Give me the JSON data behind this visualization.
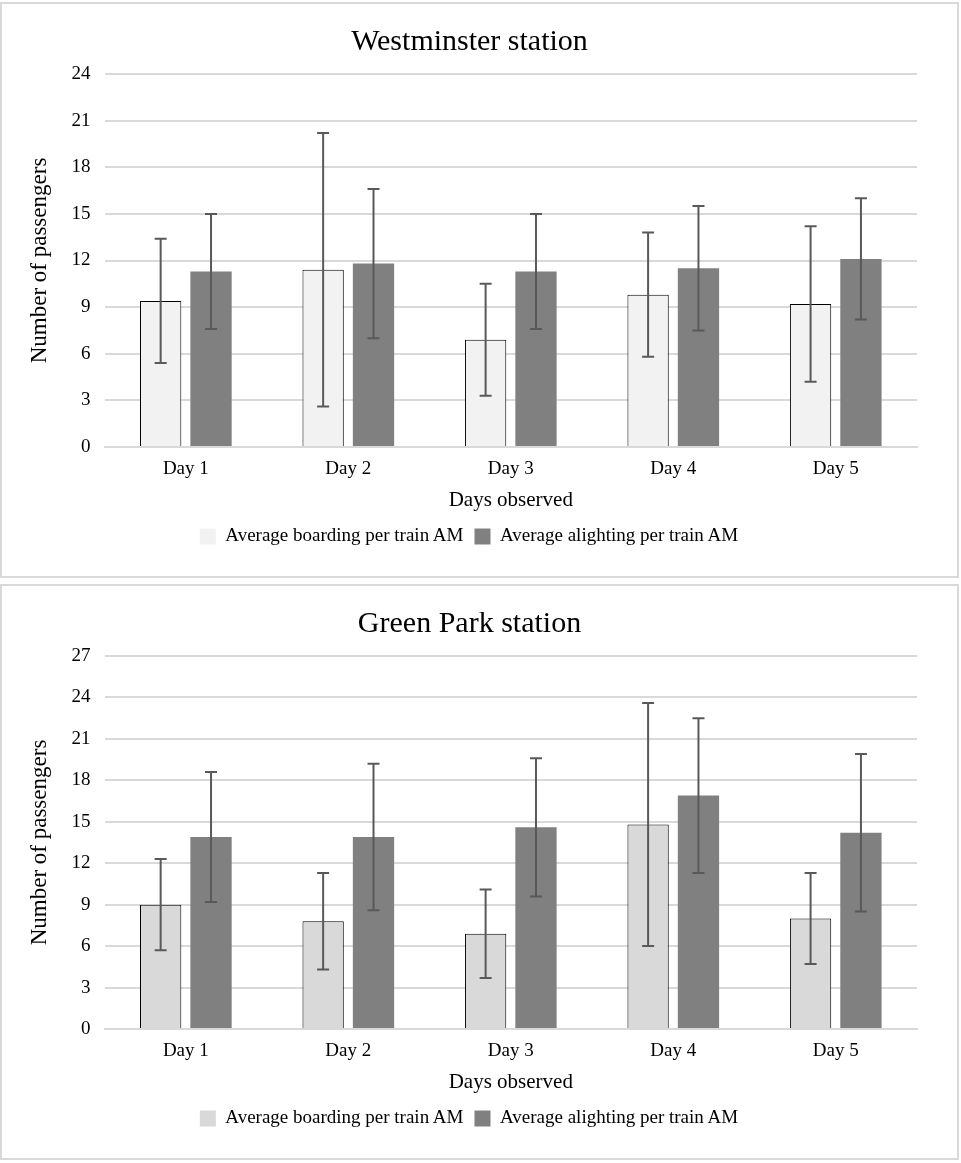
{
  "chart_data": [
    {
      "type": "bar",
      "title": "Westminster station",
      "xlabel": "Days observed",
      "ylabel": "Number of passengers",
      "categories": [
        "Day 1",
        "Day 2",
        "Day 3",
        "Day 4",
        "Day 5"
      ],
      "series": [
        {
          "name": "Average boarding per train AM",
          "color": "#f2f2f2",
          "values": [
            9.4,
            11.4,
            6.9,
            9.8,
            9.2
          ],
          "errors": [
            4.0,
            8.8,
            3.6,
            4.0,
            5.0
          ]
        },
        {
          "name": "Average alighting per train AM",
          "color": "#808080",
          "values": [
            11.3,
            11.8,
            11.3,
            11.5,
            12.1
          ],
          "errors": [
            3.7,
            4.8,
            3.7,
            4.0,
            3.9
          ]
        }
      ],
      "ylim": [
        0,
        24
      ],
      "yticks": [
        0,
        3,
        6,
        9,
        12,
        15,
        18,
        21,
        24
      ],
      "grid": "y",
      "legend": "bottom"
    },
    {
      "type": "bar",
      "title": "Green Park station",
      "xlabel": "Days observed",
      "ylabel": "Number of passengers",
      "categories": [
        "Day 1",
        "Day 2",
        "Day 3",
        "Day 4",
        "Day 5"
      ],
      "series": [
        {
          "name": "Average boarding per train AM",
          "color": "#d9d9d9",
          "values": [
            9.0,
            7.8,
            6.9,
            14.8,
            8.0
          ],
          "errors": [
            3.3,
            3.5,
            3.2,
            8.8,
            3.3
          ]
        },
        {
          "name": "Average alighting per train AM",
          "color": "#808080",
          "values": [
            13.9,
            13.9,
            14.6,
            16.9,
            14.2
          ],
          "errors": [
            4.7,
            5.3,
            5.0,
            5.6,
            5.7
          ]
        }
      ],
      "ylim": [
        0,
        27
      ],
      "yticks": [
        0,
        3,
        6,
        9,
        12,
        15,
        18,
        21,
        24,
        27
      ],
      "grid": "y",
      "legend": "bottom"
    }
  ]
}
